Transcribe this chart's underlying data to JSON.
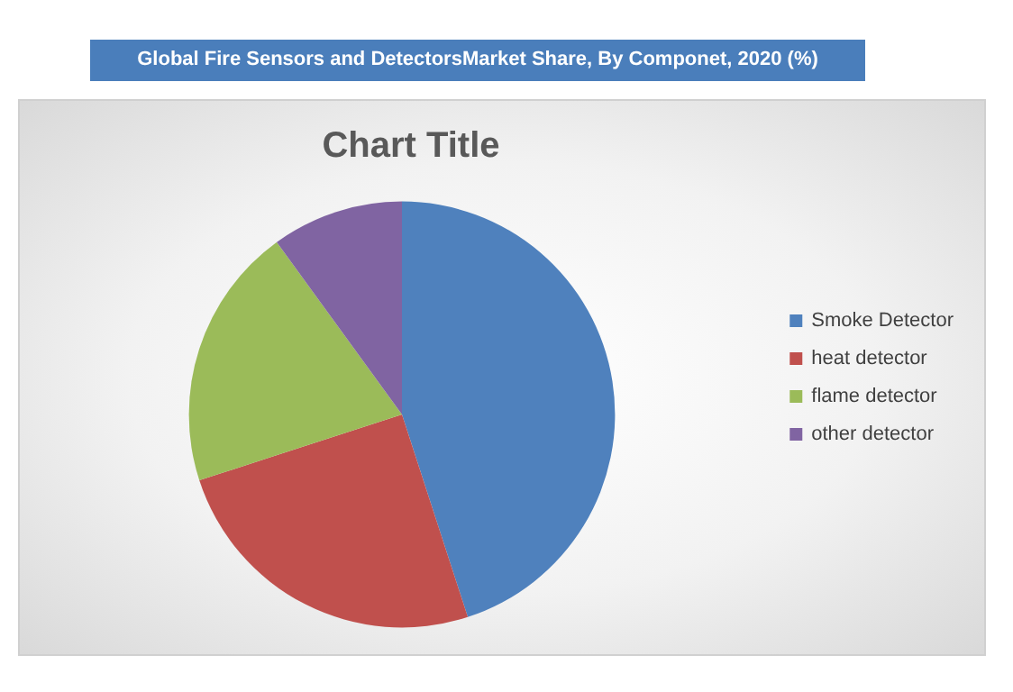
{
  "chart_data": {
    "type": "pie",
    "title": "Global Fire Sensors and DetectorsMarket Share, By Componet, 2020 (%)",
    "subtitle": "Chart Title",
    "categories": [
      "Smoke Detector",
      "heat detector",
      "flame detector",
      "other detector"
    ],
    "values": [
      45,
      25,
      20,
      10
    ],
    "colors": [
      "#4f81bd",
      "#c0504d",
      "#9bbb59",
      "#8064a2"
    ],
    "legend": "right"
  }
}
